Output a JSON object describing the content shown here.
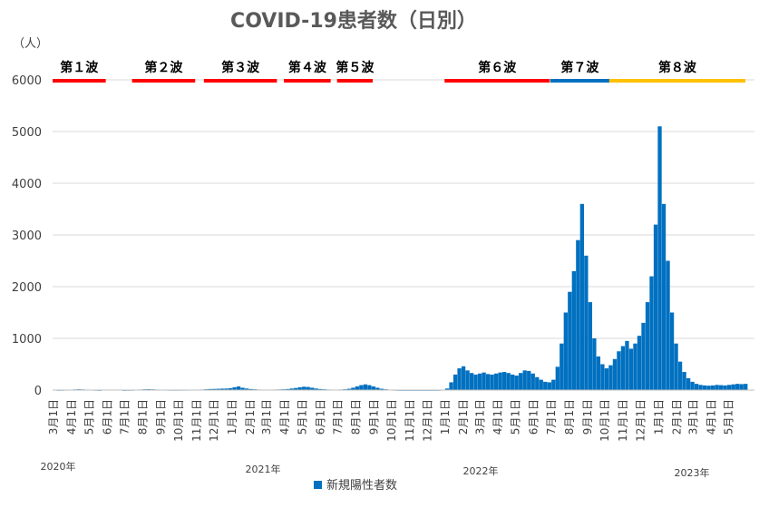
{
  "chart_data": {
    "type": "bar",
    "title": "COVID-19患者数（日別）",
    "y_unit_label": "（人）",
    "ylim": [
      0,
      6000
    ],
    "yticks": [
      0,
      1000,
      2000,
      3000,
      4000,
      5000,
      6000
    ],
    "grid": true,
    "legend_position": "bottom",
    "series": [
      {
        "name": "新規陽性者数",
        "color": "#0070c0",
        "resolution": "weekly_samples",
        "x_start": "2020-03-01",
        "x_end": "2023-05-31",
        "points": [
          [
            "2020-03-01",
            0
          ],
          [
            "2020-03-08",
            2
          ],
          [
            "2020-03-15",
            3
          ],
          [
            "2020-03-22",
            5
          ],
          [
            "2020-03-29",
            8
          ],
          [
            "2020-04-05",
            12
          ],
          [
            "2020-04-12",
            15
          ],
          [
            "2020-04-19",
            12
          ],
          [
            "2020-04-26",
            8
          ],
          [
            "2020-05-03",
            5
          ],
          [
            "2020-05-10",
            3
          ],
          [
            "2020-05-17",
            1
          ],
          [
            "2020-05-24",
            0
          ],
          [
            "2020-05-31",
            0
          ],
          [
            "2020-06-07",
            0
          ],
          [
            "2020-06-14",
            0
          ],
          [
            "2020-06-21",
            0
          ],
          [
            "2020-06-28",
            1
          ],
          [
            "2020-07-05",
            2
          ],
          [
            "2020-07-12",
            3
          ],
          [
            "2020-07-19",
            6
          ],
          [
            "2020-07-26",
            10
          ],
          [
            "2020-08-02",
            14
          ],
          [
            "2020-08-09",
            16
          ],
          [
            "2020-08-16",
            14
          ],
          [
            "2020-08-23",
            10
          ],
          [
            "2020-08-30",
            7
          ],
          [
            "2020-09-06",
            5
          ],
          [
            "2020-09-13",
            4
          ],
          [
            "2020-09-20",
            3
          ],
          [
            "2020-09-27",
            3
          ],
          [
            "2020-10-04",
            4
          ],
          [
            "2020-10-11",
            4
          ],
          [
            "2020-10-18",
            5
          ],
          [
            "2020-10-25",
            5
          ],
          [
            "2020-11-01",
            7
          ],
          [
            "2020-11-08",
            10
          ],
          [
            "2020-11-15",
            15
          ],
          [
            "2020-11-22",
            20
          ],
          [
            "2020-11-29",
            22
          ],
          [
            "2020-12-06",
            25
          ],
          [
            "2020-12-13",
            28
          ],
          [
            "2020-12-20",
            30
          ],
          [
            "2020-12-27",
            35
          ],
          [
            "2021-01-03",
            55
          ],
          [
            "2021-01-10",
            70
          ],
          [
            "2021-01-17",
            45
          ],
          [
            "2021-01-24",
            30
          ],
          [
            "2021-01-31",
            20
          ],
          [
            "2021-02-07",
            15
          ],
          [
            "2021-02-14",
            10
          ],
          [
            "2021-02-21",
            8
          ],
          [
            "2021-02-28",
            6
          ],
          [
            "2021-03-07",
            8
          ],
          [
            "2021-03-14",
            10
          ],
          [
            "2021-03-21",
            12
          ],
          [
            "2021-03-28",
            15
          ],
          [
            "2021-04-04",
            20
          ],
          [
            "2021-04-11",
            30
          ],
          [
            "2021-04-18",
            40
          ],
          [
            "2021-04-25",
            55
          ],
          [
            "2021-05-02",
            65
          ],
          [
            "2021-05-09",
            60
          ],
          [
            "2021-05-16",
            45
          ],
          [
            "2021-05-23",
            30
          ],
          [
            "2021-05-30",
            20
          ],
          [
            "2021-06-06",
            15
          ],
          [
            "2021-06-13",
            10
          ],
          [
            "2021-06-20",
            8
          ],
          [
            "2021-06-27",
            8
          ],
          [
            "2021-07-04",
            10
          ],
          [
            "2021-07-11",
            15
          ],
          [
            "2021-07-18",
            25
          ],
          [
            "2021-07-25",
            45
          ],
          [
            "2021-08-01",
            70
          ],
          [
            "2021-08-08",
            95
          ],
          [
            "2021-08-15",
            110
          ],
          [
            "2021-08-22",
            95
          ],
          [
            "2021-08-29",
            70
          ],
          [
            "2021-09-05",
            45
          ],
          [
            "2021-09-12",
            25
          ],
          [
            "2021-09-19",
            15
          ],
          [
            "2021-09-26",
            8
          ],
          [
            "2021-10-03",
            4
          ],
          [
            "2021-10-10",
            2
          ],
          [
            "2021-10-17",
            1
          ],
          [
            "2021-10-24",
            1
          ],
          [
            "2021-10-31",
            1
          ],
          [
            "2021-11-07",
            1
          ],
          [
            "2021-11-14",
            1
          ],
          [
            "2021-11-21",
            1
          ],
          [
            "2021-11-28",
            1
          ],
          [
            "2021-12-05",
            1
          ],
          [
            "2021-12-12",
            1
          ],
          [
            "2021-12-19",
            2
          ],
          [
            "2021-12-26",
            5
          ],
          [
            "2022-01-02",
            30
          ],
          [
            "2022-01-09",
            150
          ],
          [
            "2022-01-16",
            300
          ],
          [
            "2022-01-23",
            420
          ],
          [
            "2022-01-30",
            460
          ],
          [
            "2022-02-06",
            380
          ],
          [
            "2022-02-13",
            330
          ],
          [
            "2022-02-20",
            300
          ],
          [
            "2022-02-27",
            320
          ],
          [
            "2022-03-06",
            340
          ],
          [
            "2022-03-13",
            310
          ],
          [
            "2022-03-20",
            300
          ],
          [
            "2022-03-27",
            320
          ],
          [
            "2022-04-03",
            340
          ],
          [
            "2022-04-10",
            350
          ],
          [
            "2022-04-17",
            330
          ],
          [
            "2022-04-24",
            300
          ],
          [
            "2022-05-01",
            280
          ],
          [
            "2022-05-08",
            330
          ],
          [
            "2022-05-15",
            380
          ],
          [
            "2022-05-22",
            370
          ],
          [
            "2022-05-29",
            320
          ],
          [
            "2022-06-05",
            250
          ],
          [
            "2022-06-12",
            200
          ],
          [
            "2022-06-19",
            160
          ],
          [
            "2022-06-26",
            150
          ],
          [
            "2022-07-03",
            200
          ],
          [
            "2022-07-10",
            450
          ],
          [
            "2022-07-17",
            900
          ],
          [
            "2022-07-24",
            1500
          ],
          [
            "2022-07-31",
            1900
          ],
          [
            "2022-08-07",
            2300
          ],
          [
            "2022-08-14",
            2900
          ],
          [
            "2022-08-21",
            3600
          ],
          [
            "2022-08-28",
            2600
          ],
          [
            "2022-09-04",
            1700
          ],
          [
            "2022-09-11",
            1000
          ],
          [
            "2022-09-18",
            650
          ],
          [
            "2022-09-25",
            500
          ],
          [
            "2022-10-02",
            420
          ],
          [
            "2022-10-09",
            480
          ],
          [
            "2022-10-16",
            600
          ],
          [
            "2022-10-23",
            750
          ],
          [
            "2022-10-30",
            850
          ],
          [
            "2022-11-06",
            950
          ],
          [
            "2022-11-13",
            800
          ],
          [
            "2022-11-20",
            900
          ],
          [
            "2022-11-27",
            1050
          ],
          [
            "2022-12-04",
            1300
          ],
          [
            "2022-12-11",
            1700
          ],
          [
            "2022-12-18",
            2200
          ],
          [
            "2022-12-25",
            3200
          ],
          [
            "2023-01-01",
            5100
          ],
          [
            "2023-01-08",
            3600
          ],
          [
            "2023-01-15",
            2500
          ],
          [
            "2023-01-22",
            1500
          ],
          [
            "2023-01-29",
            900
          ],
          [
            "2023-02-05",
            550
          ],
          [
            "2023-02-12",
            350
          ],
          [
            "2023-02-19",
            230
          ],
          [
            "2023-02-26",
            160
          ],
          [
            "2023-03-05",
            120
          ],
          [
            "2023-03-12",
            100
          ],
          [
            "2023-03-19",
            90
          ],
          [
            "2023-03-26",
            85
          ],
          [
            "2023-04-02",
            90
          ],
          [
            "2023-04-09",
            100
          ],
          [
            "2023-04-16",
            95
          ],
          [
            "2023-04-23",
            90
          ],
          [
            "2023-04-30",
            100
          ],
          [
            "2023-05-07",
            110
          ],
          [
            "2023-05-14",
            120
          ],
          [
            "2023-05-21",
            115
          ],
          [
            "2023-05-28",
            120
          ]
        ]
      }
    ],
    "x_tick_labels": [
      "3月1日",
      "4月1日",
      "5月1日",
      "6月1日",
      "7月1日",
      "8月1日",
      "9月1日",
      "10月1日",
      "11月1日",
      "12月1日",
      "1月1日",
      "2月1日",
      "3月1日",
      "4月1日",
      "5月1日",
      "6月1日",
      "7月1日",
      "8月1日",
      "9月1日",
      "10月1日",
      "11月1日",
      "12月1日",
      "1月1日",
      "2月1日",
      "3月1日",
      "4月1日",
      "5月1日",
      "6月1日",
      "7月1日",
      "8月1日",
      "9月1日",
      "10月1日",
      "11月1日",
      "12月1日",
      "1月1日",
      "2月1日",
      "3月1日",
      "4月1日",
      "5月1日"
    ],
    "year_labels": [
      "2020年",
      "2021年",
      "2022年",
      "2023年"
    ],
    "waves": [
      {
        "label": "第１波",
        "color": "#ff0000",
        "start": "2020-03-01",
        "end": "2020-05-31"
      },
      {
        "label": "第２波",
        "color": "#ff0000",
        "start": "2020-07-15",
        "end": "2020-10-31"
      },
      {
        "label": "第３波",
        "color": "#ff0000",
        "start": "2020-11-15",
        "end": "2021-03-20"
      },
      {
        "label": "第４波",
        "color": "#ff0000",
        "start": "2021-04-01",
        "end": "2021-06-20"
      },
      {
        "label": "第５波",
        "color": "#ff0000",
        "start": "2021-07-01",
        "end": "2021-08-31"
      },
      {
        "label": "第６波",
        "color": "#ff0000",
        "start": "2022-01-01",
        "end": "2022-06-30"
      },
      {
        "label": "第７波",
        "color": "#0070c0",
        "start": "2022-07-01",
        "end": "2022-10-10"
      },
      {
        "label": "第８波",
        "color": "#ffc000",
        "start": "2022-10-10",
        "end": "2023-05-31"
      }
    ]
  }
}
